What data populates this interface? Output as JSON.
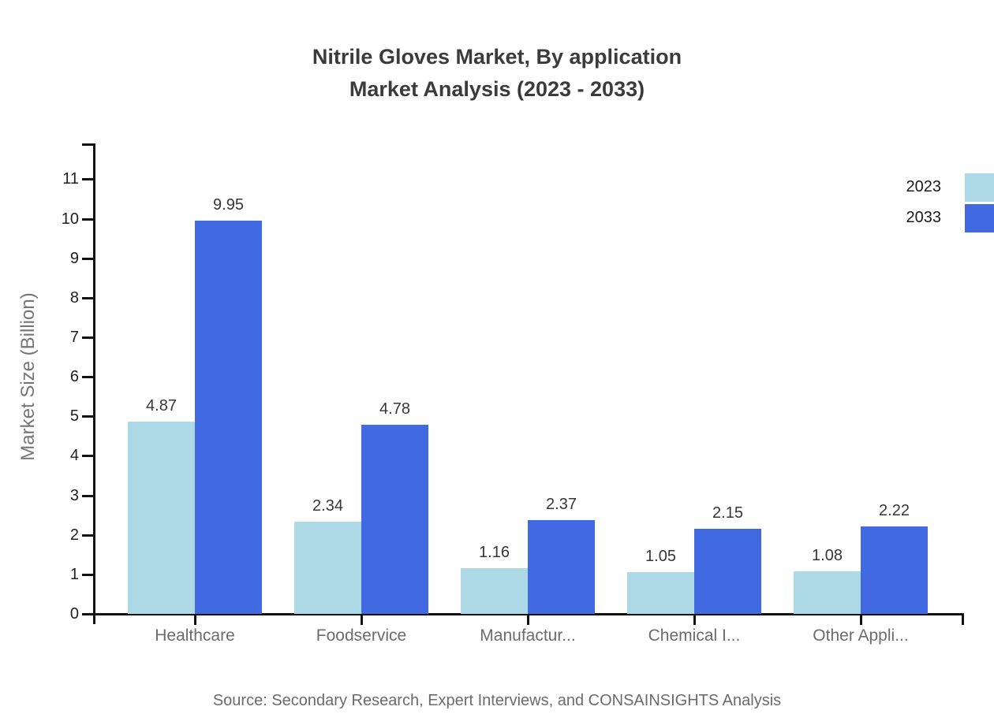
{
  "title": {
    "line1": "Nitrile Gloves Market, By application",
    "line2": "Market Analysis (2023 - 2033)"
  },
  "source_note": "Source: Secondary Research, Expert Interviews, and CONSAINSIGHTS Analysis",
  "chart_data": {
    "type": "bar",
    "title": "Nitrile Gloves Market, By application Market Analysis (2023 - 2033)",
    "categories": [
      "Healthcare",
      "Foodservice",
      "Manufactur...",
      "Chemical I...",
      "Other Appli..."
    ],
    "series": [
      {
        "name": "2023",
        "color": "#ADD8E6",
        "values": [
          4.87,
          2.34,
          1.16,
          1.05,
          1.08
        ]
      },
      {
        "name": "2033",
        "color": "#4169E1",
        "values": [
          9.95,
          4.78,
          2.37,
          2.15,
          2.22
        ]
      }
    ],
    "xlabel": "",
    "ylabel": "Market Size (Billion)",
    "ylim": [
      0,
      11.9
    ],
    "yticks": [
      0,
      1,
      2,
      3,
      4,
      5,
      6,
      7,
      8,
      9,
      10,
      11
    ],
    "grid": false,
    "legend_position": "top-right",
    "value_labels": true,
    "axis_color": "#111111"
  }
}
